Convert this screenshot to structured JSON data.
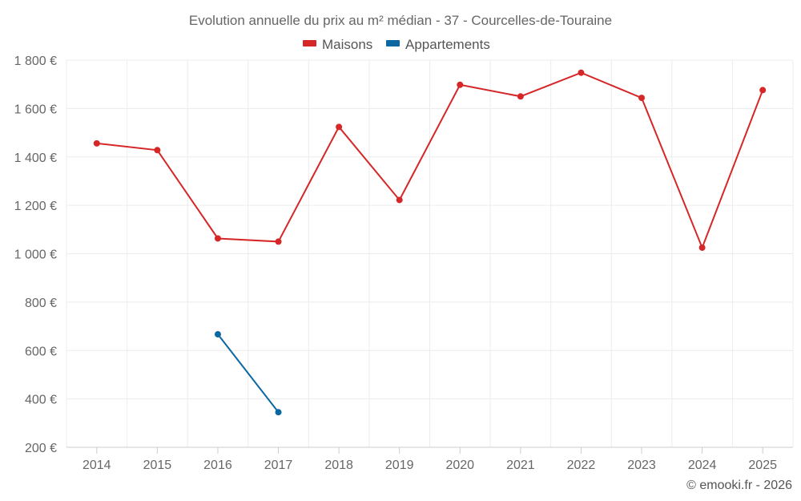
{
  "chart_data": {
    "type": "line",
    "title": "Evolution annuelle du prix au m² médian - 37 - Courcelles-de-Touraine",
    "xlabel": "",
    "ylabel": "",
    "categories": [
      "2014",
      "2015",
      "2016",
      "2017",
      "2018",
      "2019",
      "2020",
      "2021",
      "2022",
      "2023",
      "2024",
      "2025"
    ],
    "ylim": [
      200,
      1800
    ],
    "yticks": [
      200,
      400,
      600,
      800,
      1000,
      1200,
      1400,
      1600,
      1800
    ],
    "ytick_labels": [
      "200 €",
      "400 €",
      "600 €",
      "800 €",
      "1 000 €",
      "1 200 €",
      "1 400 €",
      "1 600 €",
      "1 800 €"
    ],
    "grid": true,
    "legend_position": "top-center",
    "series": [
      {
        "name": "Maisons",
        "color": "#d62728",
        "values": [
          1456,
          1428,
          1063,
          1050,
          1524,
          1222,
          1698,
          1650,
          1748,
          1644,
          1025,
          1676
        ]
      },
      {
        "name": "Appartements",
        "color": "#0b67a0",
        "values": [
          null,
          null,
          667,
          345,
          null,
          null,
          null,
          null,
          null,
          null,
          null,
          null
        ]
      }
    ]
  },
  "credit": "© emooki.fr - 2026"
}
